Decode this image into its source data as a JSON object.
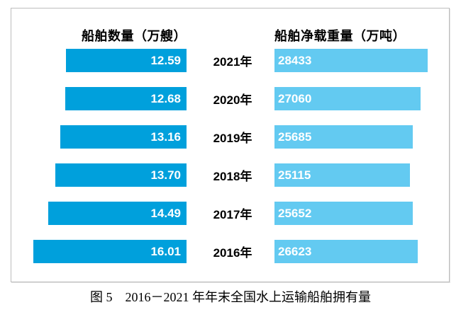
{
  "chart": {
    "left_header": "船舶数量（万艘）",
    "right_header": "船舶净载重量（万吨）",
    "caption": "图 5　2016－2021 年年末全国水上运输船舶拥有量",
    "colors": {
      "left_bar": "#00A0DC",
      "right_bar": "#63CAF1",
      "bar_label_text": "#FFFFFF",
      "frame_border": "#BDBDBD"
    }
  },
  "chart_data": {
    "type": "bar",
    "orientation": "horizontal-tornado",
    "categories": [
      "2021年",
      "2020年",
      "2019年",
      "2018年",
      "2017年",
      "2016年"
    ],
    "series": [
      {
        "name": "船舶数量（万艘）",
        "side": "left",
        "values": [
          12.59,
          12.68,
          13.16,
          13.7,
          14.49,
          16.01
        ],
        "labels": [
          "12.59",
          "12.68",
          "13.16",
          "13.70",
          "14.49",
          "16.01"
        ],
        "max": 16.01
      },
      {
        "name": "船舶净载重量（万吨）",
        "side": "right",
        "values": [
          28433,
          27060,
          25685,
          25115,
          25652,
          26623
        ],
        "labels": [
          "28433",
          "27060",
          "25685",
          "25115",
          "25652",
          "26623"
        ],
        "max": 28433
      }
    ],
    "title": "图 5　2016－2021 年年末全国水上运输船舶拥有量",
    "value_labels_inside_bars": true,
    "grid": false,
    "legend_position": "column-headers"
  }
}
